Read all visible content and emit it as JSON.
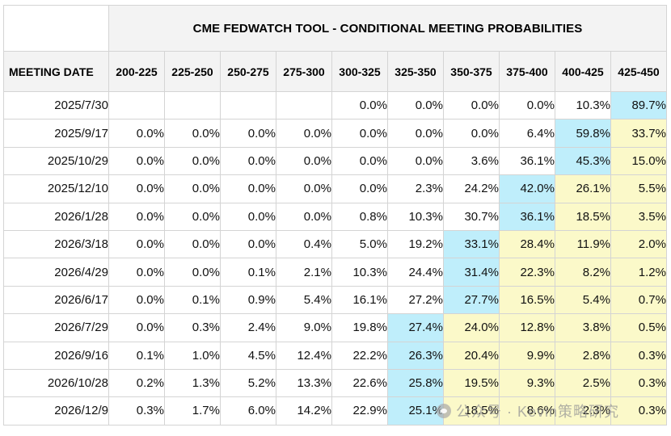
{
  "chart_data": {
    "type": "table",
    "title": "CME FEDWATCH TOOL - CONDITIONAL MEETING PROBABILITIES",
    "row_header": "MEETING DATE",
    "columns": [
      "200-225",
      "225-250",
      "250-275",
      "275-300",
      "300-325",
      "325-350",
      "350-375",
      "375-400",
      "400-425",
      "425-450"
    ],
    "rows": [
      {
        "date": "2025/7/30",
        "values": [
          "",
          "",
          "",
          "",
          "0.0%",
          "0.0%",
          "0.0%",
          "0.0%",
          "10.3%",
          "89.7%"
        ],
        "max_col": 9
      },
      {
        "date": "2025/9/17",
        "values": [
          "0.0%",
          "0.0%",
          "0.0%",
          "0.0%",
          "0.0%",
          "0.0%",
          "0.0%",
          "6.4%",
          "59.8%",
          "33.7%"
        ],
        "max_col": 8
      },
      {
        "date": "2025/10/29",
        "values": [
          "0.0%",
          "0.0%",
          "0.0%",
          "0.0%",
          "0.0%",
          "0.0%",
          "3.6%",
          "36.1%",
          "45.3%",
          "15.0%"
        ],
        "max_col": 8
      },
      {
        "date": "2025/12/10",
        "values": [
          "0.0%",
          "0.0%",
          "0.0%",
          "0.0%",
          "0.0%",
          "2.3%",
          "24.2%",
          "42.0%",
          "26.1%",
          "5.5%"
        ],
        "max_col": 7
      },
      {
        "date": "2026/1/28",
        "values": [
          "0.0%",
          "0.0%",
          "0.0%",
          "0.0%",
          "0.8%",
          "10.3%",
          "30.7%",
          "36.1%",
          "18.5%",
          "3.5%"
        ],
        "max_col": 7
      },
      {
        "date": "2026/3/18",
        "values": [
          "0.0%",
          "0.0%",
          "0.0%",
          "0.4%",
          "5.0%",
          "19.2%",
          "33.1%",
          "28.4%",
          "11.9%",
          "2.0%"
        ],
        "max_col": 6
      },
      {
        "date": "2026/4/29",
        "values": [
          "0.0%",
          "0.0%",
          "0.1%",
          "2.1%",
          "10.3%",
          "24.4%",
          "31.4%",
          "22.3%",
          "8.2%",
          "1.2%"
        ],
        "max_col": 6
      },
      {
        "date": "2026/6/17",
        "values": [
          "0.0%",
          "0.1%",
          "0.9%",
          "5.4%",
          "16.1%",
          "27.2%",
          "27.7%",
          "16.5%",
          "5.4%",
          "0.7%"
        ],
        "max_col": 6
      },
      {
        "date": "2026/7/29",
        "values": [
          "0.0%",
          "0.3%",
          "2.4%",
          "9.0%",
          "19.8%",
          "27.4%",
          "24.0%",
          "12.8%",
          "3.8%",
          "0.5%"
        ],
        "max_col": 5
      },
      {
        "date": "2026/9/16",
        "values": [
          "0.1%",
          "1.0%",
          "4.5%",
          "12.4%",
          "22.2%",
          "26.3%",
          "20.4%",
          "9.9%",
          "2.8%",
          "0.3%"
        ],
        "max_col": 5
      },
      {
        "date": "2026/10/28",
        "values": [
          "0.2%",
          "1.3%",
          "5.2%",
          "13.3%",
          "22.6%",
          "25.8%",
          "19.5%",
          "9.3%",
          "2.5%",
          "0.3%"
        ],
        "max_col": 5
      },
      {
        "date": "2026/12/9",
        "values": [
          "0.3%",
          "1.7%",
          "6.0%",
          "14.2%",
          "22.9%",
          "25.1%",
          "18.5%",
          "8.6%",
          "2.3%",
          "0.3%"
        ],
        "max_col": 5
      }
    ],
    "current_col": 9,
    "colors": {
      "max": "#bfeefb",
      "upper": "#fbf9c9",
      "header": "#f3f3f3"
    }
  },
  "watermark": {
    "text": "公众号 · Kevin策略研究",
    "icon": "wechat-icon"
  }
}
